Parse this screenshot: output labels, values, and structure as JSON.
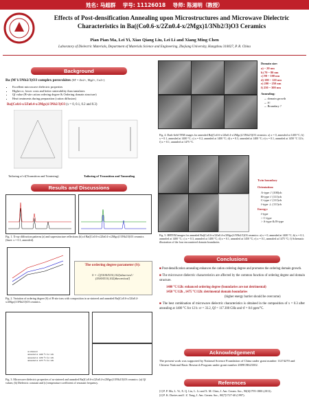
{
  "banner": "姓名: 马超群    学号: 11126018    导师: 陈湘明（教授）",
  "header": {
    "title": "Effects of Post-densification Annealing upon Microstructures and Microwave Dielectric Characteristics in Ba((Co0.6-x/2Zn0.4-x/2Mgx)1/3Nb2/3)O3 Ceramics",
    "authors": "Pian Pian Ma, Lei Yi, Xiao Qiang Liu, Lei Li and Xiang Ming Chen",
    "affiliation": "Laboratory of Dielectric Materials, Department of Materials Science and Engineering, Zhejiang University, Hangzhou 310027, P. R. China"
  },
  "background": {
    "heading": "Background",
    "subtitle": "Ba (M'1/3Nb2/3)O3 complex perovskites",
    "subtitle_note": "(M' = Zn2+, Mg2+, Co2+)",
    "bullets": [
      "Excellent microwave dielectric properties",
      "Higher εr, lower costs and better sinterability than tantalates",
      "Qf value (B-site cation ordering degree & Ordering domain structure)",
      "Heat treatments during preparation (cation diffusion)"
    ],
    "composition": "Ba((Co0.6-x/2Zn0.4-x/2Mgx)1/3Nb2/3)O3",
    "composition_note": "(x = 0, 0.1, 0.2 and 0.3)",
    "tailoring": [
      "Tailoring of τf(Ttransition and Tsintering)",
      "Tailoring of Ttransition and Tannealing"
    ]
  },
  "tem": {
    "domain_title": "Domain size:",
    "domains": [
      "a) ~ 20 nm",
      "b) 70 ~ 80 nm",
      "c) 90 ~ 100 nm",
      "d) 100 ~ 120 nm",
      "e) 200 ~ 250 nm",
      "f) 250 ~ 300 nm"
    ],
    "annealing_title": "Annealing:",
    "annealing": [
      "→ domain growth",
      "→ S↑",
      "→ Boundary ?"
    ],
    "caption": "Fig. 4. Dark-field TEM images for annealed Ba((Co0.6-x/2Zn0.4-x/2Mgx)1/3Nb2/3)O3 ceramics: a) x = 0, annealed at 1400 °C; b) x = 0.1, annealed at 1400 °C; c) x = 0.2, annealed at 1400 °C; d) x = 0.3, annealed at 1400 °C; e) x = 0.1, annealed at 1450 °C 12 h; f) x = 0.1, annealed at 1475 °C."
  },
  "hrtem": {
    "twin": "Twin boundary",
    "orientation_title": "Orientation:",
    "orientations": [
      "A-type // (100)ch",
      "B-type // (111)ch",
      "C-type // (111)ch",
      "f-type ⊥ (111)ch"
    ],
    "energy_title": "Energy:",
    "energy": [
      "f-type",
      "> C-type",
      "> A-type & B-type"
    ],
    "caption": "Fig. 5. HRTEM images for annealed Ba((Co0.6-x/2Zn0.4-x/2Mgx)1/3Nb2/3)O3 ceramics: a) x = 0, annealed at 1400 °C; b) x = 0.1, annealed at 1400 °C; c) x = 0.3, annealed at 1400 °C; d) x = 0.1, annealed at 1450 °C; e) x = 0.1, annealed at 1475 °C; f) Schematic illustration of the four encountered domain boundaries."
  },
  "results": {
    "heading": "Results and Discussions",
    "fig1_caption": "Fig. 1. X-ray diffraction patterns (a) and superstructure reflections (b) of Ba((Co0.6-x/2Zn0.4-x/2Mgx)1/3Nb2/3)O3 ceramics (Inset: x = 0.1, annealed).",
    "fig2_box_title": "The ordering degree parameter (S):",
    "fig2_formula": "S = √[(I100/I110,102)observed / (I100/I110,102)theoretical]",
    "fig2_caption": "Fig. 2. Variation of ordering degree (S) of B-site ions with composition in as-sintered and annealed Ba((Co0.6-x/2Zn0.4-x/2Mgx)1/3Nb2/3)O3 ceramics.",
    "fig3_legend": [
      "as sintered",
      "annealed at 1400 °C for 12h",
      "annealed at 1450 °C for 12h",
      "annealed at 1475 °C for 12h"
    ],
    "fig3_caption": "Fig. 3. Microwave dielectric properties of as-sintered and annealed Ba((Co0.6-x/2Zn0.4-x/2Mgx)1/3Nb2/3)O3 ceramics: (a) Qf values; (b) Dielectric constant and (c) temperature coefficient of resonant frequency."
  },
  "conclusions": {
    "heading": "Conclusions",
    "items": [
      "Post-densification annealing enhances the cation ordering degree and promotes the ordering domain growth.",
      "The microwave dielectric characteristics are affected by the common function of ordering degree and domain structure.",
      "The best combination of microwave dielectric characteristics is obtained in the composition of x = 0.3 after annealing at 1400 °C for 12 h: εr = 33.2, Qf = 117 200 GHz and τf = 8.6 ppm/°C."
    ],
    "notes": [
      "1400 °C/12h:  enhanced ordering degree (boundaries are not detrimental)",
      "1450 °C/12h , 1475 °C/12h:  detrimental domain boundaries",
      "(higher energy barrier should be overcome)"
    ]
  },
  "acknowledgement": {
    "heading": "Acknowledgement",
    "text": "The present work was supported by National Science Foundation of China under grant number 11274270 and Chinese National Basic Research Program under grant number 2009CB623302."
  },
  "references": {
    "heading": "References",
    "items": [
      "[1] P. P. Ma, L. Yi, X. Q. Liu, L. Li and X. M. Chen, J. Am. Ceram. Soc., 96[6]1795-1800 (2013).",
      "[2] P. K. Davies and J. Z. Tong, J. Am. Ceram. Soc., 80[7]1727-40 (1997)."
    ]
  }
}
